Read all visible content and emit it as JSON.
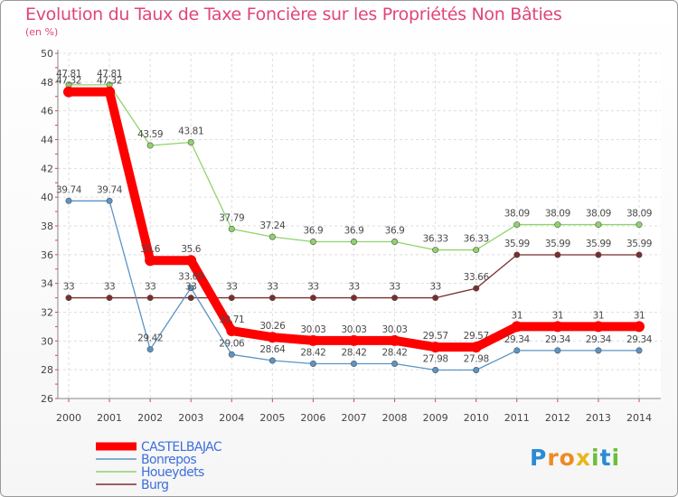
{
  "title": "Evolution du Taux de Taxe Foncière sur les Propriétés Non Bâties",
  "subtitle": "(en %)",
  "logo": {
    "text": "ProXiti",
    "letters": [
      "P",
      "r",
      "o",
      "x",
      "i",
      "t",
      "i"
    ],
    "colors": [
      "#2a8bd5",
      "#f08a24",
      "#f08a24",
      "#e8b71a",
      "#6cbf3c",
      "#2a8bd5",
      "#6cbf3c"
    ]
  },
  "chart_data": {
    "type": "line",
    "title": "Evolution du Taux de Taxe Foncière sur les Propriétés Non Bâties",
    "ylabel": "(en %)",
    "xlabel": "",
    "x": [
      "2000",
      "2001",
      "2002",
      "2003",
      "2004",
      "2005",
      "2006",
      "2007",
      "2008",
      "2009",
      "2010",
      "2011",
      "2012",
      "2013",
      "2014"
    ],
    "ylim": [
      26,
      50
    ],
    "yticks": [
      26,
      28,
      30,
      32,
      34,
      36,
      38,
      40,
      42,
      44,
      46,
      48,
      50
    ],
    "grid": true,
    "legend_position": "bottom-left",
    "series": [
      {
        "name": "CASTELBAJAC",
        "color": "#ff0000",
        "labels": [
          "47.32",
          "47.32",
          "35.6",
          "35.6",
          "30.71",
          "30.26",
          "30.03",
          "30.03",
          "30.03",
          "29.57",
          "29.57",
          "31",
          "31",
          "31",
          "31"
        ],
        "values": [
          47.32,
          47.32,
          35.6,
          35.6,
          30.71,
          30.26,
          30.03,
          30.03,
          30.03,
          29.57,
          29.57,
          31,
          31,
          31,
          31
        ]
      },
      {
        "name": "Bonrepos",
        "color": "#5b94c5",
        "labels": [
          "39.74",
          "39.74",
          "29.42",
          "33.69",
          "29.06",
          "28.64",
          "28.42",
          "28.42",
          "28.42",
          "27.98",
          "27.98",
          "29.34",
          "29.34",
          "29.34",
          "29.34"
        ],
        "values": [
          39.74,
          39.74,
          29.42,
          33.69,
          29.06,
          28.64,
          28.42,
          28.42,
          28.42,
          27.98,
          27.98,
          29.34,
          29.34,
          29.34,
          29.34
        ]
      },
      {
        "name": "Houeydets",
        "color": "#8fd46a",
        "labels": [
          "47.81",
          "47.81",
          "43.59",
          "43.81",
          "37.79",
          "37.24",
          "36.9",
          "36.9",
          "36.9",
          "36.33",
          "36.33",
          "38.09",
          "38.09",
          "38.09",
          "38.09"
        ],
        "values": [
          47.81,
          47.81,
          43.59,
          43.81,
          37.79,
          37.24,
          36.9,
          36.9,
          36.9,
          36.33,
          36.33,
          38.09,
          38.09,
          38.09,
          38.09
        ]
      },
      {
        "name": "Burg",
        "color": "#7b2d2d",
        "labels": [
          "33",
          "33",
          "33",
          "33",
          "33",
          "33",
          "33",
          "33",
          "33",
          "33",
          "33.66",
          "35.99",
          "35.99",
          "35.99",
          "35.99"
        ],
        "values": [
          33,
          33,
          33,
          33,
          33,
          33,
          33,
          33,
          33,
          33,
          33.66,
          35.99,
          35.99,
          35.99,
          35.99
        ]
      }
    ]
  }
}
